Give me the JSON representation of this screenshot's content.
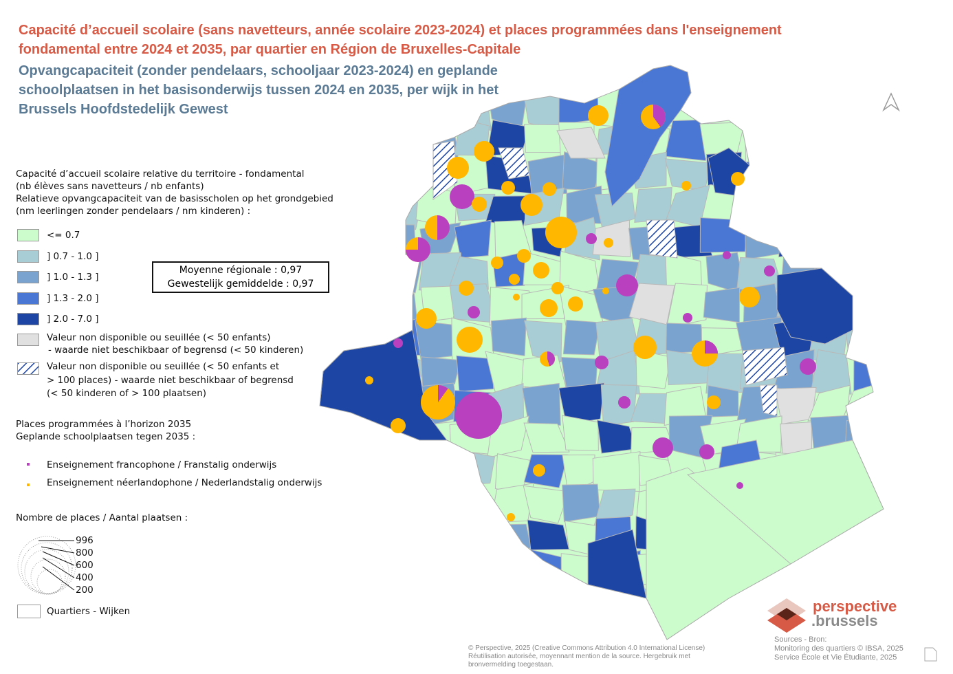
{
  "title_fr": "Capacité d’accueil scolaire (sans navetteurs, année scolaire 2023-2024) et places programmées dans l'enseignement fondamental entre 2024 et 2035, par quartier en Région de Bruxelles-Capitale",
  "title_nl": "Opvangcapaciteit (zonder pendelaars, schooljaar 2023-2024) en geplande schoolplaatsen in het basisonderwijs tussen 2024 en 2035, per wijk in het Brussels Hoofdstedelijk Gewest",
  "legend": {
    "capacity_title": [
      "Capacité d’accueil scolaire relative du territoire - fondamental",
      "(nb élèves sans navetteurs / nb enfants)",
      "Relatieve opvangcapaciteit van de basisscholen op het grondgebied",
      "(nm leerlingen zonder pendelaars / nm kinderen) :"
    ],
    "classes": [
      {
        "label": "<= 0.7",
        "color": "#ccfccc"
      },
      {
        "label": "] 0.7 - 1.0 ]",
        "color": "#a9cdd4"
      },
      {
        "label": "] 1.0 - 1.3 ]",
        "color": "#7ba3cf"
      },
      {
        "label": "] 1.3 - 2.0 ]",
        "color": "#4a77d4"
      },
      {
        "label": "] 2.0 - 7.0 ]",
        "color": "#1d45a3"
      }
    ],
    "na_grey": [
      "Valeur non disponible ou seuillée (< 50 enfants)",
      "- waarde niet beschikbaar of begrensd (< 50 kinderen)"
    ],
    "na_hatch": [
      "Valeur non disponible ou seuillée (< 50 enfants et",
      "> 100 places) - waarde niet beschikbaar of begrensd",
      "(< 50 kinderen of > 100 plaatsen)"
    ],
    "places_title": [
      "Places programmées à l’horizon 2035",
      "Geplande schoolplaatsen tegen 2035 :"
    ],
    "fr_label": "Enseignement francophone / Franstalig onderwijs",
    "nl_label": "Enseignement néerlandophone / Nederlandstalig onderwijs",
    "fr_color": "#b941c0",
    "nl_color": "#ffb700",
    "size_title": "Nombre de places / Aantal plaatsen :",
    "sizes": [
      "996",
      "800",
      "600",
      "400",
      "200"
    ],
    "quartiers": "Quartiers - Wijken"
  },
  "average": [
    "Moyenne régionale : 0,97",
    "Gewestelijk gemiddelde : 0,97"
  ],
  "credits": [
    "© Perspective, 2025 (Creative Commons Attribution 4.0 International License)",
    "Réutilisation autorisée, moyennant mention de la source. Hergebruik met",
    "bronvermelding toegestaan."
  ],
  "sources": [
    "Sources - Bron:",
    "Monitoring des quartiers © IBSA, 2025",
    "Service École et Vie Étudiante, 2025"
  ],
  "logo": [
    "perspective",
    ".brussels"
  ]
}
